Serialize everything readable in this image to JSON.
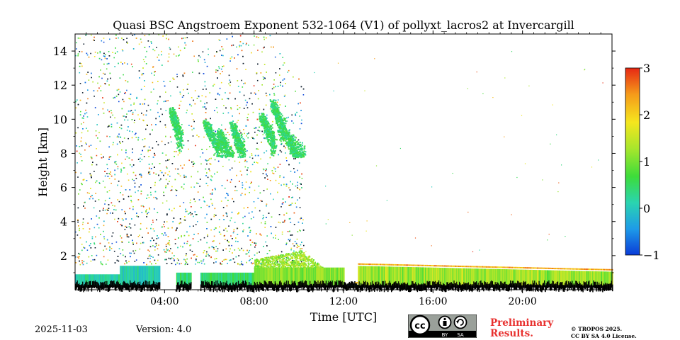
{
  "chart_data": {
    "type": "heatmap",
    "title": "Quasi BSC Angstroem Exponent 532-1064 (V1) of pollyxt_lacros2 at Invercargill",
    "xlabel": "Time [UTC]",
    "ylabel": "Height [km]",
    "xlim_hours": [
      0,
      24
    ],
    "ylim_km": [
      0,
      15
    ],
    "x_ticks": [
      {
        "hour": 4,
        "label": "04:00"
      },
      {
        "hour": 8,
        "label": "08:00"
      },
      {
        "hour": 12,
        "label": "12:00"
      },
      {
        "hour": 16,
        "label": "16:00"
      },
      {
        "hour": 20,
        "label": "20:00"
      }
    ],
    "y_ticks": [
      {
        "value": 2,
        "label": "2"
      },
      {
        "value": 4,
        "label": "4"
      },
      {
        "value": 6,
        "label": "6"
      },
      {
        "value": 8,
        "label": "8"
      },
      {
        "value": 10,
        "label": "10"
      },
      {
        "value": 12,
        "label": "12"
      },
      {
        "value": 14,
        "label": "14"
      }
    ],
    "colorbar": {
      "range": [
        -1,
        3
      ],
      "ticks": [
        {
          "value": 3,
          "label": "3"
        },
        {
          "value": 2,
          "label": "2"
        },
        {
          "value": 1,
          "label": "1"
        },
        {
          "value": 0,
          "label": "0"
        },
        {
          "value": -1,
          "label": "−1"
        }
      ],
      "colors": [
        "#0a3cd8",
        "#1e9be8",
        "#2ad4b0",
        "#3ddc3a",
        "#a8e62c",
        "#f5e61e",
        "#f59a1a",
        "#e62814"
      ]
    },
    "features": [
      {
        "name": "boundary layer",
        "t_start": 0.0,
        "t_end": 24.0,
        "h_min": 0.0,
        "h_max": 1.4,
        "angstrom_min": 0.0,
        "angstrom_max": 1.5
      },
      {
        "name": "cirrus layer",
        "t_start": 4.2,
        "t_end": 10.0,
        "h_min": 7.8,
        "h_max": 11.8,
        "angstrom_min": 0.2,
        "angstrom_max": 0.8
      },
      {
        "name": "noise region",
        "t_start": 0.0,
        "t_end": 10.2,
        "h_min": 1.5,
        "h_max": 15.0,
        "angstrom_min": -1.0,
        "angstrom_max": 3.0
      },
      {
        "name": "residual layer",
        "t_start": 8.0,
        "t_end": 11.8,
        "h_min": 0.5,
        "h_max": 2.5,
        "angstrom_min": 0.8,
        "angstrom_max": 1.6
      }
    ]
  },
  "footer": {
    "date": "2025-11-03",
    "version": "Version: 4.0",
    "preliminary_line1": "Preliminary",
    "preliminary_line2": "Results.",
    "copyright_line1": "© TROPOS 2025.",
    "copyright_line2": "CC BY SA 4.0 License.",
    "cc_badge_label": "BY SA",
    "cc_badge_left": "cc",
    "cc_by": "BY",
    "cc_sa": "SA"
  }
}
